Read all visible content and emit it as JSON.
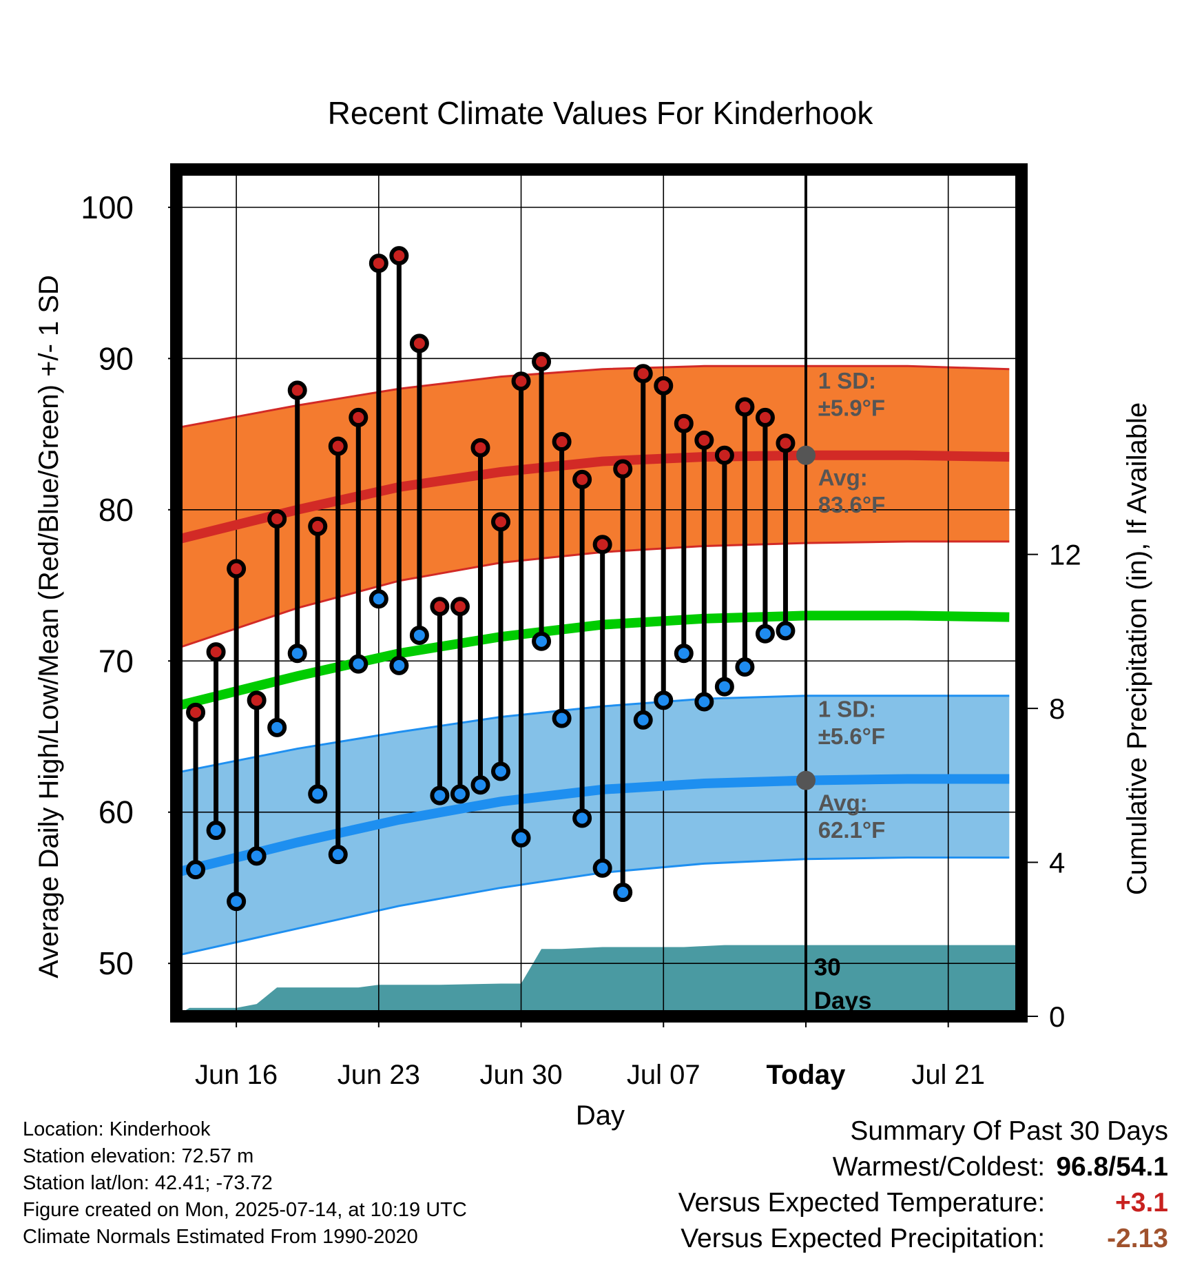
{
  "chart_data": {
    "type": "line",
    "title": "Recent Climate Values For Kinderhook",
    "xlabel": "Day",
    "ylabel": "Average Daily High/Low/Mean (Red/Blue/Green) +/- 1 SD",
    "y2label": "Cumulative Precipitation (in), If Available",
    "ylim": [
      46.5,
      102.5
    ],
    "y2lim": [
      0,
      22.0
    ],
    "yticks": [
      50,
      60,
      70,
      80,
      90,
      100
    ],
    "y2ticks": [
      0,
      4,
      8,
      12
    ],
    "xlim": [
      -0.95,
      40.6
    ],
    "xticks": [
      {
        "day": 2,
        "label": "Jun 16"
      },
      {
        "day": 9,
        "label": "Jun 23"
      },
      {
        "day": 16,
        "label": "Jun 30"
      },
      {
        "day": 23,
        "label": "Jul 07"
      },
      {
        "day": 30,
        "label": "Today"
      },
      {
        "day": 37,
        "label": "Jul 21"
      }
    ],
    "grid": true,
    "today_day": 30,
    "colors": {
      "high_band": "#f47b2f",
      "high_line": "#d22a26",
      "low_band": "#84c1e8",
      "low_line": "#1e8ff0",
      "mean_line": "#00cc00",
      "precip": "#4a9aa2",
      "high_marker": "#c8211f",
      "low_marker": "#1f8cf0",
      "today_marker": "#555555",
      "warm": "#c8211f",
      "precip_anomaly": "#a0522d"
    },
    "normals": {
      "day": [
        -1,
        5,
        10,
        15,
        20,
        25,
        30,
        35,
        40
      ],
      "high_avg": [
        78.0,
        80.0,
        81.5,
        82.5,
        83.2,
        83.5,
        83.6,
        83.6,
        83.5
      ],
      "high_plus_sd": [
        85.4,
        86.9,
        88.0,
        88.8,
        89.3,
        89.5,
        89.5,
        89.5,
        89.3
      ],
      "high_minus_sd": [
        70.8,
        73.5,
        75.3,
        76.5,
        77.2,
        77.6,
        77.8,
        77.9,
        77.9
      ],
      "low_avg": [
        56.0,
        58.0,
        59.5,
        60.7,
        61.5,
        61.9,
        62.1,
        62.2,
        62.2
      ],
      "low_plus_sd": [
        62.6,
        64.2,
        65.3,
        66.3,
        67.0,
        67.5,
        67.7,
        67.7,
        67.7
      ],
      "low_minus_sd": [
        50.5,
        52.3,
        53.8,
        55.0,
        56.0,
        56.6,
        56.9,
        57.0,
        57.0
      ],
      "mean_avg": [
        67.0,
        69.0,
        70.5,
        71.6,
        72.4,
        72.8,
        73.0,
        73.0,
        72.9
      ]
    },
    "observed": {
      "day": [
        0,
        1,
        2,
        3,
        4,
        5,
        6,
        7,
        8,
        9,
        10,
        11,
        12,
        13,
        14,
        15,
        16,
        17,
        18,
        19,
        20,
        21,
        22,
        23,
        24,
        25,
        26,
        27,
        28,
        29
      ],
      "high": [
        66.6,
        70.6,
        76.1,
        67.4,
        79.4,
        87.9,
        78.9,
        84.2,
        86.1,
        96.3,
        96.8,
        91.0,
        73.6,
        73.6,
        84.1,
        79.2,
        88.5,
        89.8,
        84.5,
        82.0,
        77.7,
        82.7,
        89.0,
        88.2,
        85.7,
        84.6,
        83.6,
        86.8,
        86.1,
        84.4
      ],
      "low": [
        56.2,
        58.8,
        54.1,
        57.1,
        65.6,
        70.5,
        61.2,
        57.2,
        69.8,
        74.1,
        69.7,
        71.7,
        61.1,
        61.2,
        61.8,
        62.7,
        58.3,
        71.3,
        66.2,
        59.6,
        56.3,
        54.7,
        66.1,
        67.4,
        70.5,
        67.3,
        68.3,
        69.6,
        71.8,
        72.0
      ]
    },
    "precip_cumulative": {
      "day": [
        -1,
        -0.3,
        2,
        3,
        4,
        5,
        8,
        9,
        12,
        15,
        16,
        17,
        18,
        20,
        22,
        24,
        26,
        40.6
      ],
      "inches": [
        0.0,
        0.22,
        0.22,
        0.32,
        0.75,
        0.75,
        0.75,
        0.82,
        0.82,
        0.85,
        0.85,
        1.75,
        1.75,
        1.8,
        1.8,
        1.8,
        1.85,
        1.85
      ]
    },
    "annotations": {
      "high_sd_label": "1 SD:",
      "high_sd_value": "±5.9°F",
      "high_avg_label": "Avg:",
      "high_avg_value": "83.6°F",
      "low_sd_label": "1 SD:",
      "low_sd_value": "±5.6°F",
      "low_avg_label": "Avg:",
      "low_avg_value": "62.1°F",
      "precip_days_number": "30",
      "precip_days_word": "Days"
    }
  },
  "footer": {
    "location": "Location: Kinderhook",
    "elevation": "Station elevation: 72.57 m",
    "latlon": "Station lat/lon: 42.41; -73.72",
    "created": "Figure created on Mon, 2025-07-14, at 10:19 UTC",
    "normals": "Climate Normals Estimated From 1990-2020"
  },
  "summary": {
    "title": "Summary Of Past 30 Days",
    "warmest_coldest_label": "Warmest/Coldest:",
    "warmest_coldest_value": "96.8/54.1",
    "temp_label": "Versus Expected Temperature:",
    "temp_value": "+3.1",
    "precip_label": "Versus Expected Precipitation:",
    "precip_value": "-2.13"
  }
}
